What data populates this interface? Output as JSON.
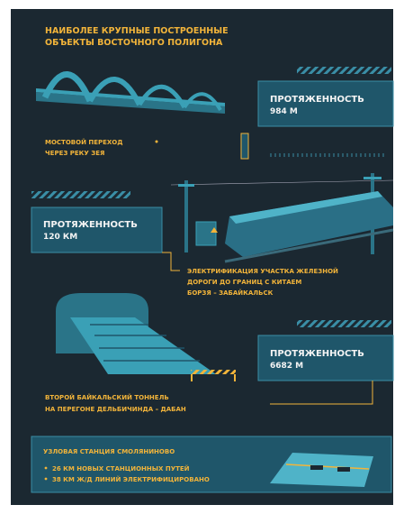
{
  "header": {
    "title": [
      "НАИБОЛЕЕ КРУПНЫЕ ПОСТРОЕННЫЕ",
      "ОБЪЕКТЫ ВОСТОЧНОГО ПОЛИГОНА"
    ]
  },
  "objects": [
    {
      "label": "ПРОТЯЖЕННОСТЬ",
      "value": "984 М",
      "caption": [
        "МОСТОВОЙ ПЕРЕХОД",
        "ЧЕРЕЗ РЕКУ ЗЕЯ"
      ]
    },
    {
      "label": "ПРОТЯЖЕННОСТЬ",
      "value": "120 КМ",
      "caption": [
        "ЭЛЕКТРИФИКАЦИЯ УЧАСТКА ЖЕЛЕЗНОЙ",
        "ДОРОГИ ДО ГРАНИЦ С КИТАЕМ",
        "БОРЗЯ – ЗАБАЙКАЛЬСК"
      ]
    },
    {
      "label": "ПРОТЯЖЕННОСТЬ",
      "value": "6682 М",
      "caption": [
        "ВТОРОЙ БАЙКАЛЬСКИЙ ТОННЕЛЬ",
        "НА ПЕРЕГОНЕ ДЕЛЬБИЧИНДА – ДАБАН"
      ]
    }
  ],
  "station": {
    "title": "УЗЛОВАЯ СТАНЦИЯ СМОЛЯНИНОВО",
    "items": [
      "26 КМ НОВЫХ СТАНЦИОННЫХ ПУТЕЙ",
      "38 КМ Ж/Д ЛИНИЙ ЭЛЕКТРИФИЦИРОВАНО"
    ]
  }
}
